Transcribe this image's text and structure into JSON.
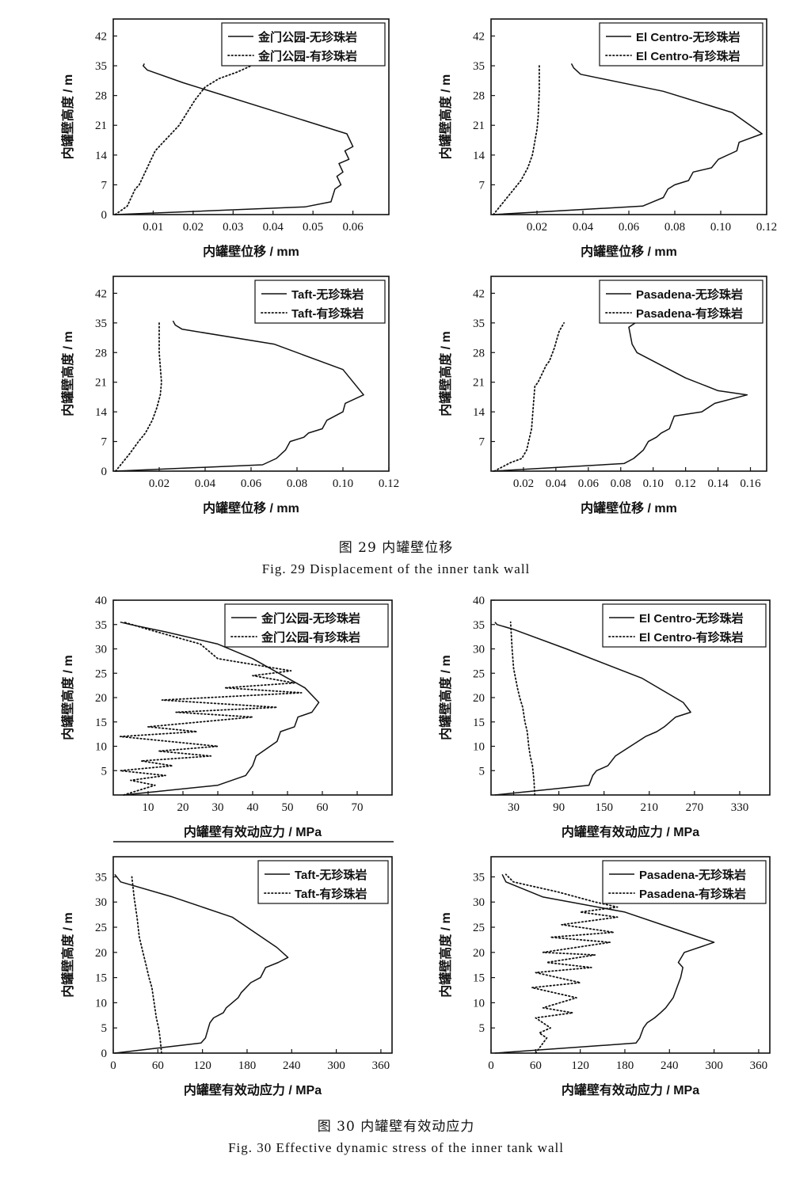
{
  "figure29": {
    "caption_zh": "图 29   内罐壁位移",
    "caption_en": "Fig. 29   Displacement of the inner tank wall"
  },
  "figure30": {
    "caption_zh": "图 30   内罐壁有效动应力",
    "caption_en": "Fig. 30   Effective dynamic stress of the inner tank wall"
  },
  "chart_data": [
    {
      "type": "line",
      "figure": "29",
      "panel": "jinmen-disp",
      "xlabel": "内罐壁位移 / mm",
      "ylabel": "内罐壁高度 / m",
      "xlim": [
        0,
        0.069
      ],
      "ylim": [
        0,
        46
      ],
      "xticks": [
        0.01,
        0.02,
        0.03,
        0.04,
        0.05,
        0.06
      ],
      "xticklabels": [
        "0.01",
        "0.02",
        "0.03",
        "0.04",
        "0.05",
        "0.06"
      ],
      "yticks": [
        0,
        7,
        14,
        21,
        28,
        35,
        42
      ],
      "yticklabels": [
        "0",
        "7",
        "14",
        "21",
        "28",
        "35",
        "42"
      ],
      "legend": "top-right",
      "series": [
        {
          "name": "金门公园-无珍珠岩",
          "style": "solid",
          "x": [
            0.0005,
            0.048,
            0.0545,
            0.0555,
            0.057,
            0.056,
            0.0575,
            0.0565,
            0.059,
            0.058,
            0.06,
            0.0585,
            0.0175,
            0.0085,
            0.0075,
            0.0078
          ],
          "y": [
            0,
            1.8,
            3,
            6,
            7,
            9,
            10,
            12,
            13,
            15,
            16,
            19,
            31,
            34,
            35,
            35.5
          ]
        },
        {
          "name": "金门公园-有珍珠岩",
          "style": "dotted",
          "x": [
            0.0005,
            0.0035,
            0.0045,
            0.0055,
            0.0065,
            0.0075,
            0.0085,
            0.0095,
            0.0105,
            0.0125,
            0.0145,
            0.0165,
            0.0185,
            0.0205,
            0.023,
            0.0265,
            0.031,
            0.0345
          ],
          "y": [
            0,
            2,
            4,
            6,
            7,
            9,
            11,
            13,
            15,
            17,
            19,
            21,
            24,
            27,
            30,
            32,
            33.5,
            35
          ]
        }
      ]
    },
    {
      "type": "line",
      "figure": "29",
      "panel": "elcentro-disp",
      "xlabel": "内罐壁位移 / mm",
      "ylabel": "内罐壁高度 / m",
      "xlim": [
        0,
        0.12
      ],
      "ylim": [
        0,
        46
      ],
      "xticks": [
        0.02,
        0.04,
        0.06,
        0.08,
        0.1,
        0.12
      ],
      "xticklabels": [
        "0.02",
        "0.04",
        "0.06",
        "0.08",
        "0.10",
        "0.12"
      ],
      "yticks": [
        7,
        14,
        21,
        28,
        35,
        42
      ],
      "yticklabels": [
        "7",
        "14",
        "21",
        "28",
        "35",
        "42"
      ],
      "legend": "top-right",
      "series": [
        {
          "name": "El Centro-无珍珠岩",
          "style": "solid",
          "x": [
            0.001,
            0.066,
            0.075,
            0.077,
            0.08,
            0.086,
            0.088,
            0.096,
            0.099,
            0.107,
            0.108,
            0.118,
            0.105,
            0.075,
            0.039,
            0.036,
            0.035
          ],
          "y": [
            0,
            2,
            4,
            6,
            7,
            8,
            10,
            11,
            13,
            15,
            17,
            19,
            24,
            29,
            33,
            34.5,
            35.5
          ]
        },
        {
          "name": "El Centro-有珍珠岩",
          "style": "dotted",
          "x": [
            0.001,
            0.004,
            0.007,
            0.01,
            0.013,
            0.016,
            0.018,
            0.019,
            0.02,
            0.0205,
            0.021,
            0.021
          ],
          "y": [
            0,
            2,
            4,
            6,
            8,
            11,
            14,
            17,
            20,
            23,
            29,
            35
          ]
        }
      ]
    },
    {
      "type": "line",
      "figure": "29",
      "panel": "taft-disp",
      "xlabel": "内罐壁位移 / mm",
      "ylabel": "内罐壁高度 / m",
      "xlim": [
        0,
        0.12
      ],
      "ylim": [
        0,
        46
      ],
      "xticks": [
        0.02,
        0.04,
        0.06,
        0.08,
        0.1,
        0.12
      ],
      "xticklabels": [
        "0.02",
        "0.04",
        "0.06",
        "0.08",
        "0.10",
        "0.12"
      ],
      "yticks": [
        0,
        7,
        14,
        21,
        28,
        35,
        42
      ],
      "yticklabels": [
        "0",
        "7",
        "14",
        "21",
        "28",
        "35",
        "42"
      ],
      "legend": "top-right",
      "series": [
        {
          "name": "Taft-无珍珠岩",
          "style": "solid",
          "x": [
            0.001,
            0.065,
            0.071,
            0.075,
            0.077,
            0.083,
            0.085,
            0.091,
            0.093,
            0.1,
            0.101,
            0.109,
            0.1,
            0.07,
            0.03,
            0.027,
            0.026
          ],
          "y": [
            0,
            1.5,
            3,
            5,
            7,
            8,
            9,
            10,
            12,
            14,
            16,
            18,
            24,
            30,
            33.5,
            34.5,
            35.5
          ]
        },
        {
          "name": "Taft-有珍珠岩",
          "style": "dotted",
          "x": [
            0.001,
            0.004,
            0.007,
            0.011,
            0.014,
            0.017,
            0.019,
            0.0205,
            0.021,
            0.02,
            0.02
          ],
          "y": [
            0,
            2,
            4,
            7,
            9,
            12,
            15,
            18,
            21,
            28,
            35
          ]
        }
      ]
    },
    {
      "type": "line",
      "figure": "29",
      "panel": "pasadena-disp",
      "xlabel": "内罐壁位移 / mm",
      "ylabel": "内罐壁高度 / m",
      "xlim": [
        0,
        0.17
      ],
      "ylim": [
        0,
        46
      ],
      "xticks": [
        0.02,
        0.04,
        0.06,
        0.08,
        0.1,
        0.12,
        0.14,
        0.16
      ],
      "xticklabels": [
        "0.02",
        "0.04",
        "0.06",
        "0.08",
        "0.10",
        "0.12",
        "0.14",
        "0.16"
      ],
      "yticks": [
        7,
        14,
        21,
        28,
        35,
        42
      ],
      "yticklabels": [
        "7",
        "14",
        "21",
        "28",
        "35",
        "42"
      ],
      "legend": "top-right",
      "series": [
        {
          "name": "Pasadena-无珍珠岩",
          "style": "solid",
          "x": [
            0.001,
            0.082,
            0.088,
            0.094,
            0.097,
            0.102,
            0.105,
            0.11,
            0.113,
            0.13,
            0.138,
            0.158,
            0.14,
            0.12,
            0.09,
            0.087,
            0.085,
            0.089
          ],
          "y": [
            0,
            1.8,
            3,
            5,
            7,
            8,
            9,
            10,
            13,
            14,
            16,
            18,
            19,
            22,
            28,
            30,
            34,
            35
          ]
        },
        {
          "name": "Pasadena-有珍珠岩",
          "style": "dotted",
          "x": [
            0.002,
            0.012,
            0.019,
            0.022,
            0.025,
            0.026,
            0.027,
            0.029,
            0.034,
            0.036,
            0.039,
            0.042,
            0.045
          ],
          "y": [
            0,
            2,
            3,
            5,
            10,
            15,
            20,
            21,
            25,
            26,
            29,
            33,
            35
          ]
        }
      ]
    },
    {
      "type": "line",
      "figure": "30",
      "panel": "jinmen-stress",
      "xlabel": "内罐壁有效动应力 / MPa",
      "ylabel": "内罐壁高度 / m",
      "xlim": [
        0,
        80
      ],
      "ylim": [
        0,
        40
      ],
      "xticks": [
        10,
        20,
        30,
        40,
        50,
        60,
        70
      ],
      "xticklabels": [
        "10",
        "20",
        "30",
        "40",
        "50",
        "60",
        "70"
      ],
      "yticks": [
        5,
        10,
        15,
        20,
        25,
        30,
        35,
        40
      ],
      "yticklabels": [
        "5",
        "10",
        "15",
        "20",
        "25",
        "30",
        "35",
        "40"
      ],
      "legend": "top-right",
      "series": [
        {
          "name": "金门公园-无珍珠岩",
          "style": "solid",
          "x": [
            3,
            30,
            38,
            40,
            41,
            43,
            45,
            47,
            48,
            52,
            53,
            57,
            59,
            55,
            40,
            30,
            15,
            5,
            2
          ],
          "y": [
            0,
            2,
            4,
            6,
            8,
            9,
            10,
            11,
            13,
            14,
            16,
            17,
            19,
            22,
            28,
            31,
            33.5,
            35,
            35.5
          ]
        },
        {
          "name": "金门公园-有珍珠岩",
          "style": "dotted",
          "x": [
            3,
            12,
            5,
            15,
            2,
            17,
            8,
            28,
            13,
            30,
            2,
            24,
            10,
            40,
            18,
            47,
            14,
            54,
            32,
            52,
            40,
            51,
            30,
            25,
            10,
            3
          ],
          "y": [
            0,
            2,
            3,
            4,
            5,
            6,
            7,
            8,
            9,
            10,
            12,
            13,
            14,
            16,
            17,
            18,
            19.5,
            21,
            22,
            23,
            24.5,
            25.5,
            28,
            31,
            34,
            35.5
          ]
        }
      ]
    },
    {
      "type": "line",
      "figure": "30",
      "panel": "elcentro-stress",
      "xlabel": "内罐壁有效动应力 / MPa",
      "ylabel": "内罐壁高度 / m",
      "xlim": [
        0,
        370
      ],
      "ylim": [
        0,
        40
      ],
      "xticks": [
        30,
        90,
        150,
        210,
        270,
        330
      ],
      "xticklabels": [
        "30",
        "90",
        "150",
        "210",
        "270",
        "330"
      ],
      "yticks": [
        5,
        10,
        15,
        20,
        25,
        30,
        35,
        40
      ],
      "yticklabels": [
        "5",
        "10",
        "15",
        "20",
        "25",
        "30",
        "35",
        "40"
      ],
      "legend": "top-right",
      "series": [
        {
          "name": "El Centro-无珍珠岩",
          "style": "solid",
          "x": [
            5,
            130,
            135,
            140,
            155,
            165,
            175,
            185,
            195,
            205,
            220,
            230,
            245,
            265,
            255,
            200,
            100,
            30,
            8,
            5
          ],
          "y": [
            0,
            2,
            4,
            5,
            6,
            8,
            9,
            10,
            11,
            12,
            13,
            14,
            16,
            17,
            19,
            24,
            30,
            34,
            35,
            35.5
          ]
        },
        {
          "name": "El Centro-有珍珠岩",
          "style": "dotted",
          "x": [
            58,
            57,
            55,
            52,
            50,
            48,
            45,
            42,
            38,
            35,
            30,
            28,
            26
          ],
          "y": [
            0,
            3,
            6,
            8,
            10,
            13,
            15,
            18,
            20,
            22,
            26,
            30,
            35.5
          ]
        }
      ]
    },
    {
      "type": "line",
      "figure": "30",
      "panel": "taft-stress",
      "xlabel": "内罐壁有效动应力 / MPa",
      "ylabel": "内罐壁高度 / m",
      "xlim": [
        0,
        375
      ],
      "ylim": [
        0,
        39
      ],
      "xticks": [
        0,
        60,
        120,
        180,
        240,
        300,
        360
      ],
      "xticklabels": [
        "0",
        "60",
        "120",
        "180",
        "240",
        "300",
        "360"
      ],
      "yticks": [
        0,
        5,
        10,
        15,
        20,
        25,
        30,
        35
      ],
      "yticklabels": [
        "0",
        "5",
        "10",
        "15",
        "20",
        "25",
        "30",
        "35"
      ],
      "legend": "top-right",
      "series": [
        {
          "name": "Taft-无珍珠岩",
          "style": "solid",
          "x": [
            2,
            118,
            124,
            128,
            130,
            135,
            148,
            152,
            160,
            168,
            172,
            185,
            198,
            205,
            222,
            235,
            220,
            160,
            80,
            10,
            2
          ],
          "y": [
            0,
            2,
            3,
            5,
            6,
            7,
            8,
            9,
            10,
            11,
            12,
            14,
            15,
            17,
            18,
            19,
            21,
            27,
            31,
            34,
            35.5
          ]
        },
        {
          "name": "Taft-有珍珠岩",
          "style": "dotted",
          "x": [
            65,
            63,
            61,
            58,
            55,
            52,
            48,
            45,
            40,
            35,
            32,
            28,
            25
          ],
          "y": [
            0,
            3,
            5,
            7,
            10,
            13,
            15,
            17,
            20,
            23,
            27,
            31,
            35
          ]
        }
      ]
    },
    {
      "type": "line",
      "figure": "30",
      "panel": "pasadena-stress",
      "xlabel": "内罐壁有效动应力 / MPa",
      "ylabel": "内罐壁高度 / m",
      "xlim": [
        0,
        375
      ],
      "ylim": [
        0,
        39
      ],
      "xticks": [
        0,
        60,
        120,
        180,
        240,
        300,
        360
      ],
      "xticklabels": [
        "0",
        "60",
        "120",
        "180",
        "240",
        "300",
        "360"
      ],
      "yticks": [
        5,
        10,
        15,
        20,
        25,
        30,
        35
      ],
      "yticklabels": [
        "5",
        "10",
        "15",
        "20",
        "25",
        "30",
        "35"
      ],
      "legend": "top-right",
      "series": [
        {
          "name": "Pasadena-无珍珠岩",
          "style": "solid",
          "x": [
            5,
            195,
            200,
            205,
            210,
            220,
            228,
            235,
            240,
            245,
            250,
            255,
            258,
            252,
            260,
            300,
            240,
            180,
            70,
            20,
            15
          ],
          "y": [
            0,
            2,
            3,
            5,
            6,
            7,
            8,
            9,
            10,
            11,
            13,
            15,
            17,
            18,
            20,
            22,
            25,
            28,
            31,
            34,
            35.5
          ]
        },
        {
          "name": "Pasadena-有珍珠岩",
          "style": "dotted",
          "x": [
            60,
            75,
            65,
            80,
            60,
            110,
            70,
            115,
            55,
            120,
            60,
            135,
            75,
            140,
            70,
            160,
            80,
            165,
            95,
            170,
            120,
            170,
            140,
            90,
            30,
            20
          ],
          "y": [
            0,
            3,
            4,
            5,
            7,
            8,
            9,
            11,
            13,
            14,
            16,
            17,
            18,
            19.5,
            20,
            22,
            23,
            24,
            25.5,
            27,
            28,
            29,
            30,
            32,
            34,
            35.5
          ]
        }
      ]
    }
  ]
}
